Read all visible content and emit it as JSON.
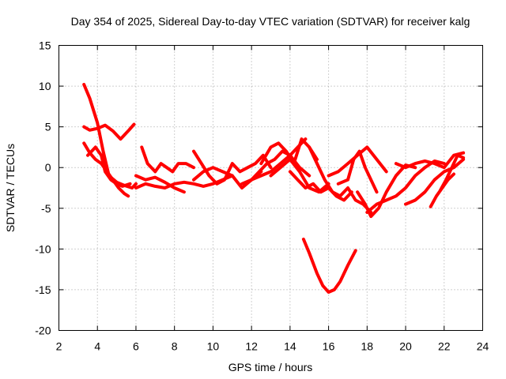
{
  "chart_data": {
    "type": "line",
    "title": "Day 354 of 2025, Sidereal Day-to-day VTEC variation (SDTVAR) for receiver kalg",
    "xlabel": "GPS time / hours",
    "ylabel": "SDTVAR / TECUs",
    "xlim": [
      2,
      24
    ],
    "ylim": [
      -20,
      15
    ],
    "xticks": [
      2,
      4,
      6,
      8,
      10,
      12,
      14,
      16,
      18,
      20,
      22,
      24
    ],
    "yticks": [
      -20,
      -15,
      -10,
      -5,
      0,
      5,
      10,
      15
    ],
    "grid": true,
    "color": "#ff0000",
    "series": [
      {
        "name": "s1",
        "x": [
          3.3,
          3.6,
          4.0,
          4.3,
          4.6,
          5.0,
          5.4,
          5.8,
          6.0
        ],
        "y": [
          10.2,
          8.5,
          5.5,
          2.0,
          -1.0,
          -1.8,
          -2.2,
          -2.5,
          -2.0
        ]
      },
      {
        "name": "s2",
        "x": [
          3.3,
          3.6,
          4.0,
          4.4,
          4.8,
          5.2,
          5.6,
          5.9
        ],
        "y": [
          5.0,
          4.6,
          4.8,
          5.2,
          4.5,
          3.5,
          4.5,
          5.3
        ]
      },
      {
        "name": "s3",
        "x": [
          3.3,
          3.6,
          3.9,
          4.2,
          4.5,
          4.8,
          5.1,
          5.4,
          5.6
        ],
        "y": [
          3.0,
          1.8,
          1.0,
          0.5,
          -0.5,
          -1.5,
          -2.5,
          -3.2,
          -3.5
        ]
      },
      {
        "name": "s4",
        "x": [
          3.5,
          3.9,
          4.2,
          4.4,
          4.7,
          5.0,
          5.3,
          5.7
        ],
        "y": [
          1.5,
          2.5,
          1.5,
          -0.5,
          -1.5,
          -2.0,
          -2.3,
          -2.0
        ]
      },
      {
        "name": "s5",
        "x": [
          6.0,
          6.5,
          7.0,
          7.5,
          8.0,
          8.5,
          9.0,
          9.5,
          10.0,
          10.5,
          11.0
        ],
        "y": [
          -2.5,
          -2.0,
          -2.3,
          -2.5,
          -2.0,
          -1.8,
          -2.0,
          -2.3,
          -2.0,
          -1.5,
          -1.0
        ]
      },
      {
        "name": "s6",
        "x": [
          6.3,
          6.6,
          7.0,
          7.3,
          7.6,
          7.9,
          8.2,
          8.6,
          9.0
        ],
        "y": [
          2.5,
          0.5,
          -0.5,
          0.5,
          0.0,
          -0.5,
          0.5,
          0.5,
          0.0
        ]
      },
      {
        "name": "s7",
        "x": [
          6.0,
          6.5,
          7.0,
          7.5,
          8.0,
          8.5
        ],
        "y": [
          -1.0,
          -1.5,
          -1.2,
          -1.8,
          -2.5,
          -3.0
        ]
      },
      {
        "name": "s8",
        "x": [
          9.0,
          9.5,
          10.0,
          10.5,
          11.0,
          11.5,
          12.0,
          12.5
        ],
        "y": [
          -1.5,
          -0.5,
          0.0,
          -0.5,
          -1.0,
          -2.5,
          -1.5,
          -0.5
        ]
      },
      {
        "name": "s9",
        "x": [
          9.0,
          9.4,
          9.8,
          10.2,
          10.6,
          11.0,
          11.4,
          11.8,
          12.2,
          12.6,
          13.0
        ],
        "y": [
          2.0,
          0.5,
          -1.0,
          -2.0,
          -1.5,
          0.5,
          -0.5,
          0.0,
          0.5,
          1.5,
          0.0
        ]
      },
      {
        "name": "s10",
        "x": [
          12.0,
          12.4,
          12.8,
          13.2,
          13.6,
          14.0,
          14.4,
          14.8
        ],
        "y": [
          -1.5,
          -0.5,
          0.5,
          1.0,
          2.0,
          1.5,
          2.5,
          3.5
        ]
      },
      {
        "name": "s11",
        "x": [
          11.5,
          12.0,
          12.5,
          13.0,
          13.5,
          14.0,
          14.5,
          15.0
        ],
        "y": [
          -2.0,
          -1.5,
          -1.0,
          -0.5,
          0.5,
          1.5,
          0.0,
          -1.0
        ]
      },
      {
        "name": "s12",
        "x": [
          12.5,
          13.0,
          13.4,
          13.8,
          14.2,
          14.6,
          15.0,
          15.4
        ],
        "y": [
          0.5,
          2.5,
          3.0,
          2.0,
          0.5,
          3.5,
          2.5,
          1.0
        ]
      },
      {
        "name": "s13",
        "x": [
          13.0,
          13.5,
          14.0,
          14.5,
          15.0,
          15.5,
          16.0
        ],
        "y": [
          -1.0,
          0.0,
          1.0,
          -0.5,
          -2.5,
          -3.0,
          -2.0
        ]
      },
      {
        "name": "s14",
        "x": [
          14.0,
          14.4,
          14.8,
          15.2,
          15.6,
          16.0,
          16.4,
          16.8,
          17.2
        ],
        "y": [
          -0.5,
          -1.5,
          -2.5,
          -2.0,
          -3.0,
          -2.5,
          -3.5,
          -4.0,
          -3.0
        ]
      },
      {
        "name": "s15",
        "x": [
          15.0,
          15.4,
          15.8,
          16.2,
          16.6,
          17.0,
          17.4,
          17.8,
          18.2
        ],
        "y": [
          2.5,
          0.5,
          -1.5,
          -3.0,
          -3.5,
          -2.5,
          -4.0,
          -4.5,
          -5.5
        ]
      },
      {
        "name": "s16",
        "x": [
          16.0,
          16.5,
          17.0,
          17.5,
          18.0,
          18.5,
          19.0
        ],
        "y": [
          -1.0,
          -0.5,
          0.5,
          1.5,
          2.5,
          1.0,
          -0.5
        ]
      },
      {
        "name": "s17",
        "x": [
          16.5,
          17.0,
          17.3,
          17.6,
          17.9,
          18.2,
          18.5
        ],
        "y": [
          -2.0,
          -1.5,
          1.0,
          2.0,
          0.0,
          -1.5,
          -3.0
        ]
      },
      {
        "name": "s18",
        "x": [
          14.7,
          15.0,
          15.4,
          15.7,
          16.0,
          16.3,
          16.6,
          17.0,
          17.4
        ],
        "y": [
          -8.8,
          -10.5,
          -13.0,
          -14.5,
          -15.3,
          -15.0,
          -14.0,
          -12.0,
          -10.2
        ]
      },
      {
        "name": "s19",
        "x": [
          17.5,
          17.9,
          18.2,
          18.6,
          19.0,
          19.5,
          20.0,
          20.5
        ],
        "y": [
          -3.0,
          -4.5,
          -6.0,
          -5.0,
          -3.0,
          -1.0,
          0.3,
          0.0
        ]
      },
      {
        "name": "s20",
        "x": [
          18.0,
          18.5,
          19.0,
          19.5,
          20.0,
          20.5,
          21.0,
          21.5,
          22.0
        ],
        "y": [
          -5.5,
          -4.5,
          -4.0,
          -3.5,
          -2.5,
          -1.0,
          0.0,
          0.8,
          0.5
        ]
      },
      {
        "name": "s21",
        "x": [
          19.5,
          20.0,
          20.5,
          21.0,
          21.5,
          22.0,
          22.5,
          23.0
        ],
        "y": [
          0.5,
          0.0,
          0.5,
          0.8,
          0.5,
          0.0,
          1.5,
          1.8
        ]
      },
      {
        "name": "s22",
        "x": [
          20.0,
          20.5,
          21.0,
          21.5,
          22.0,
          22.5,
          23.0
        ],
        "y": [
          -4.5,
          -4.0,
          -3.0,
          -1.5,
          -0.5,
          0.0,
          1.0
        ]
      },
      {
        "name": "s23",
        "x": [
          21.3,
          21.6,
          21.9,
          22.2,
          22.5
        ],
        "y": [
          -4.8,
          -3.5,
          -2.5,
          -1.5,
          -0.8
        ]
      },
      {
        "name": "s24",
        "x": [
          21.8,
          22.1,
          22.4,
          22.7,
          23.0
        ],
        "y": [
          -2.8,
          -1.5,
          0.0,
          1.5,
          1.2
        ]
      }
    ]
  }
}
